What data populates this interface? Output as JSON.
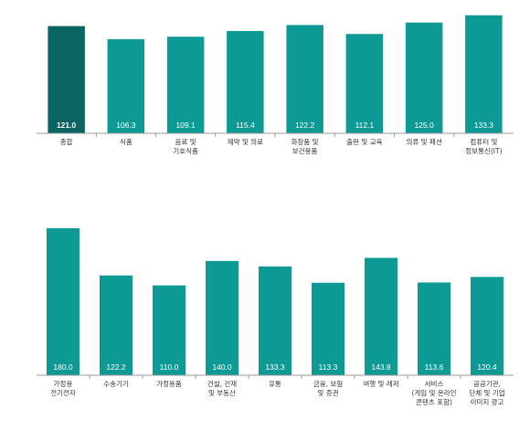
{
  "colors": {
    "bar": "#0e9a94",
    "highlight": "#0a6462",
    "axis": "#9a9a9a"
  },
  "chart_data": [
    {
      "type": "bar",
      "categories": [
        "종합",
        "식품",
        "음료 및|기호식품",
        "제약 및 의료",
        "화장품 및|보건용품",
        "출판 및 교육",
        "의류 및 패션",
        "컴퓨터 및|정보통신(IT)"
      ],
      "values": [
        121.0,
        106.3,
        109.1,
        115.4,
        122.2,
        112.1,
        125.0,
        133.3
      ],
      "value_labels": [
        "121.0",
        "106.3",
        "109.1",
        "115.4",
        "122.2",
        "112.1",
        "125.0",
        "133.3"
      ],
      "highlight_index": 0,
      "ylim": [
        0,
        134
      ]
    },
    {
      "type": "bar",
      "categories": [
        "가정용|전기전자",
        "수송기기",
        "가정용품",
        "건설, 건재|및 부동산",
        "유통",
        "금융, 보험|및 증권",
        "여행 및 레저",
        "서비스|(게임 및 온라인|콘텐츠 포함)",
        "공공기관,|단체 및 기업|이미지 광고"
      ],
      "values": [
        180.0,
        122.2,
        110.0,
        140.0,
        133.3,
        113.3,
        143.8,
        113.6,
        120.4
      ],
      "value_labels": [
        "180.0",
        "122.2",
        "110.0",
        "140.0",
        "133.3",
        "113.3",
        "143.8",
        "113.6",
        "120.4"
      ],
      "ylim": [
        0,
        180
      ]
    }
  ]
}
